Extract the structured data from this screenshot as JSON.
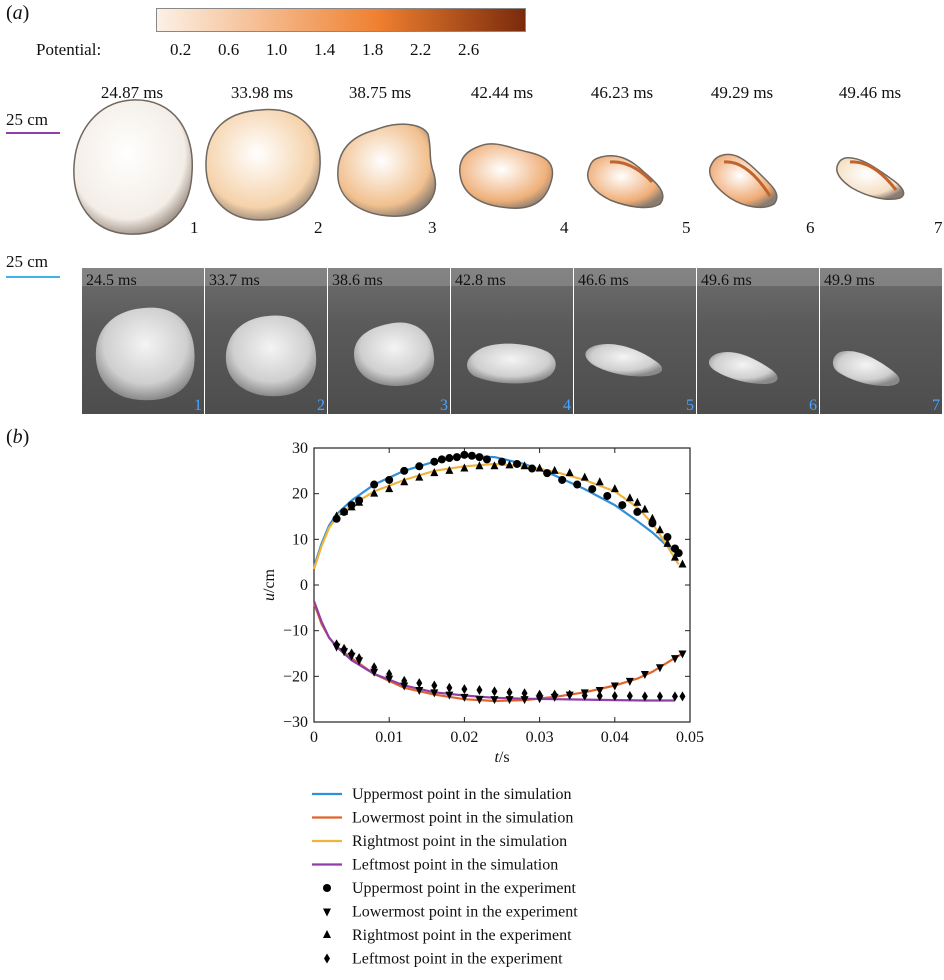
{
  "panel_a": {
    "label": "a",
    "colorbar": {
      "title": "Potential:",
      "ticks": [
        "0.2",
        "0.6",
        "1.0",
        "1.4",
        "1.8",
        "2.2",
        "2.6"
      ],
      "color_low": "#fbf1e6",
      "color_mid": "#ef8030",
      "color_high": "#7a2a0c"
    },
    "simulation": {
      "scale_label": "25 cm",
      "scale_color": "#8e3fa8",
      "frames": [
        {
          "time": "24.87 ms",
          "number": "1"
        },
        {
          "time": "33.98 ms",
          "number": "2"
        },
        {
          "time": "38.75 ms",
          "number": "3"
        },
        {
          "time": "42.44 ms",
          "number": "4"
        },
        {
          "time": "46.23 ms",
          "number": "5"
        },
        {
          "time": "49.29 ms",
          "number": "6"
        },
        {
          "time": "49.46 ms",
          "number": "7"
        }
      ]
    },
    "experiment": {
      "scale_label": "25 cm",
      "scale_color": "#3fb4e8",
      "frames": [
        {
          "time": "24.5 ms",
          "number": "1"
        },
        {
          "time": "33.7 ms",
          "number": "2"
        },
        {
          "time": "38.6 ms",
          "number": "3"
        },
        {
          "time": "42.8 ms",
          "number": "4"
        },
        {
          "time": "46.6 ms",
          "number": "5"
        },
        {
          "time": "49.6 ms",
          "number": "6"
        },
        {
          "time": "49.9 ms",
          "number": "7"
        }
      ]
    }
  },
  "panel_b": {
    "label": "b"
  },
  "chart_data": {
    "type": "line",
    "xlabel_var": "t",
    "xlabel_unit": "/s",
    "ylabel_var": "u",
    "ylabel_unit": "/cm",
    "xlim": [
      0,
      0.05
    ],
    "ylim": [
      -30,
      30
    ],
    "xticks": [
      "0",
      "0.01",
      "0.02",
      "0.03",
      "0.04",
      "0.05"
    ],
    "yticks": [
      "30",
      "20",
      "10",
      "0",
      "−10",
      "−20",
      "−30"
    ],
    "series": [
      {
        "name": "Uppermost point in the simulation",
        "kind": "line",
        "color": "#2f8fd8",
        "x": [
          0,
          0.001,
          0.002,
          0.003,
          0.005,
          0.008,
          0.012,
          0.016,
          0.02,
          0.024,
          0.028,
          0.032,
          0.036,
          0.04,
          0.043,
          0.045,
          0.047,
          0.0485
        ],
        "y": [
          4,
          9,
          13,
          15.5,
          18.5,
          22,
          25,
          27,
          28.2,
          28,
          26.5,
          24,
          21,
          17.5,
          14,
          11.5,
          8.5,
          6.5
        ]
      },
      {
        "name": "Lowermost point in the simulation",
        "kind": "line",
        "color": "#e0642a",
        "x": [
          0,
          0.001,
          0.002,
          0.003,
          0.005,
          0.008,
          0.012,
          0.016,
          0.02,
          0.024,
          0.028,
          0.032,
          0.036,
          0.04,
          0.043,
          0.045,
          0.047,
          0.049
        ],
        "y": [
          -4,
          -8.5,
          -11.5,
          -13.5,
          -16,
          -19.5,
          -22.5,
          -24,
          -25,
          -25.4,
          -25.2,
          -24.5,
          -23.5,
          -22,
          -20.5,
          -19,
          -17,
          -15
        ]
      },
      {
        "name": "Rightmost point in the simulation",
        "kind": "line",
        "color": "#f0b43c",
        "x": [
          0,
          0.001,
          0.002,
          0.003,
          0.005,
          0.008,
          0.012,
          0.016,
          0.02,
          0.024,
          0.028,
          0.032,
          0.036,
          0.04,
          0.043,
          0.045,
          0.047,
          0.0485
        ],
        "y": [
          3.5,
          8.5,
          12.5,
          14.8,
          17.5,
          20.5,
          23,
          25,
          26,
          26.5,
          26,
          24.8,
          23,
          20.5,
          17,
          13.5,
          8.5,
          4.5
        ]
      },
      {
        "name": "Leftmost point in the simulation",
        "kind": "line",
        "color": "#8e3fa8",
        "x": [
          0,
          0.001,
          0.002,
          0.003,
          0.005,
          0.008,
          0.012,
          0.016,
          0.02,
          0.024,
          0.028,
          0.032,
          0.036,
          0.04,
          0.044,
          0.048
        ],
        "y": [
          -3.5,
          -8,
          -11.5,
          -13.5,
          -16.5,
          -19.5,
          -22,
          -23.5,
          -24.2,
          -24.7,
          -24.9,
          -25,
          -25.1,
          -25.2,
          -25.3,
          -25.3
        ]
      },
      {
        "name": "Uppermost point in the experiment",
        "kind": "marker",
        "marker": "circle",
        "color": "#000000",
        "x": [
          0.003,
          0.004,
          0.005,
          0.006,
          0.008,
          0.01,
          0.012,
          0.014,
          0.016,
          0.017,
          0.018,
          0.019,
          0.02,
          0.021,
          0.022,
          0.023,
          0.025,
          0.027,
          0.029,
          0.031,
          0.033,
          0.035,
          0.037,
          0.039,
          0.041,
          0.043,
          0.045,
          0.047,
          0.048,
          0.0485
        ],
        "y": [
          14.5,
          16,
          17.5,
          18.5,
          22,
          23,
          25,
          26,
          27,
          27.5,
          27.8,
          28,
          28.5,
          28.3,
          28,
          27.5,
          27,
          26.5,
          25.5,
          24.5,
          23,
          22,
          21,
          19.5,
          17.5,
          16,
          13.5,
          10.5,
          8,
          7
        ]
      },
      {
        "name": "Lowermost point in the experiment",
        "kind": "marker",
        "marker": "triangle-down",
        "color": "#000000",
        "x": [
          0.003,
          0.004,
          0.005,
          0.006,
          0.008,
          0.01,
          0.012,
          0.014,
          0.016,
          0.018,
          0.02,
          0.022,
          0.024,
          0.026,
          0.028,
          0.03,
          0.032,
          0.034,
          0.036,
          0.038,
          0.04,
          0.042,
          0.044,
          0.046,
          0.048,
          0.049
        ],
        "y": [
          -13.5,
          -14.5,
          -15.5,
          -16.5,
          -19,
          -20.5,
          -22,
          -23,
          -23.5,
          -24,
          -24.5,
          -25,
          -25,
          -25,
          -25,
          -24.8,
          -24.5,
          -24,
          -23.5,
          -23,
          -22,
          -21,
          -19.5,
          -18,
          -16,
          -15
        ]
      },
      {
        "name": "Rightmost point in the experiment",
        "kind": "marker",
        "marker": "triangle-up",
        "color": "#000000",
        "x": [
          0.003,
          0.004,
          0.005,
          0.006,
          0.008,
          0.01,
          0.012,
          0.014,
          0.016,
          0.018,
          0.02,
          0.022,
          0.024,
          0.026,
          0.028,
          0.03,
          0.032,
          0.034,
          0.036,
          0.038,
          0.04,
          0.042,
          0.043,
          0.044,
          0.045,
          0.046,
          0.047,
          0.048,
          0.049
        ],
        "y": [
          15,
          16,
          17,
          18,
          20,
          21,
          22.5,
          23.5,
          24.5,
          25,
          25.5,
          26,
          26,
          26.2,
          26,
          25.5,
          25,
          24.5,
          23.5,
          22.5,
          21,
          19,
          18,
          16.5,
          14.5,
          12,
          9,
          6,
          4.5
        ]
      },
      {
        "name": "Leftmost point in the experiment",
        "kind": "marker",
        "marker": "diamond",
        "color": "#000000",
        "x": [
          0.003,
          0.004,
          0.005,
          0.006,
          0.008,
          0.01,
          0.012,
          0.014,
          0.016,
          0.018,
          0.02,
          0.022,
          0.024,
          0.026,
          0.028,
          0.03,
          0.032,
          0.034,
          0.036,
          0.038,
          0.04,
          0.042,
          0.044,
          0.046,
          0.048,
          0.049
        ],
        "y": [
          -13,
          -14,
          -15,
          -16,
          -18,
          -19.5,
          -21,
          -21.5,
          -22,
          -22.5,
          -22.8,
          -23,
          -23.3,
          -23.5,
          -23.7,
          -24,
          -24,
          -24,
          -24.2,
          -24.3,
          -24.3,
          -24.3,
          -24.4,
          -24.4,
          -24.4,
          -24.4
        ]
      }
    ]
  }
}
